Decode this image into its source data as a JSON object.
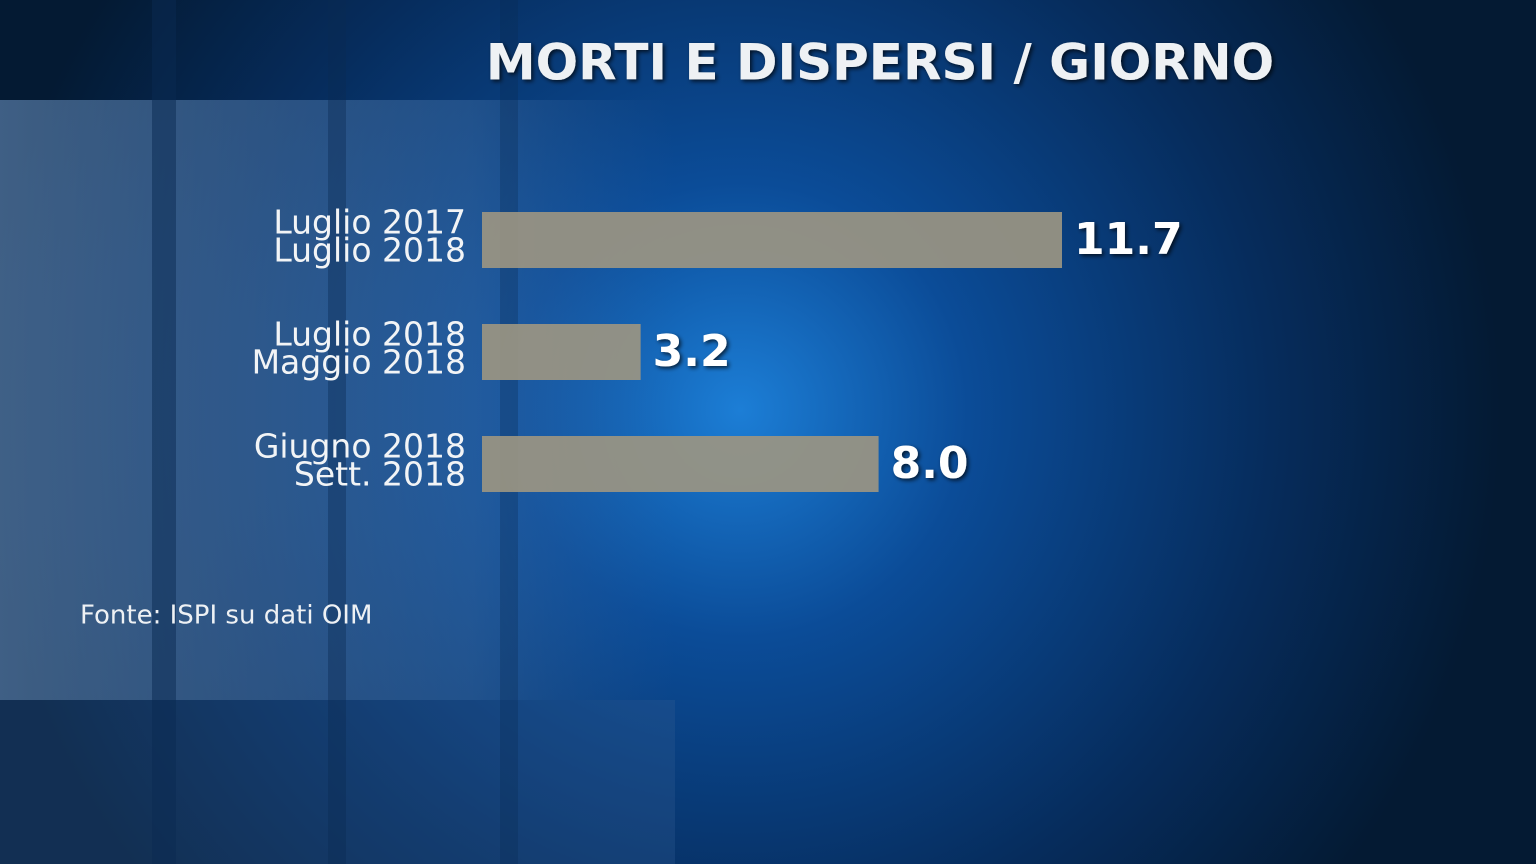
{
  "chart_data": {
    "type": "bar",
    "orientation": "horizontal",
    "title": "MORTI E DISPERSI / GIORNO",
    "categories": [
      [
        "Luglio 2017",
        "Luglio 2018"
      ],
      [
        "Luglio 2018",
        "Maggio 2018"
      ],
      [
        "Giugno 2018",
        "Sett. 2018"
      ]
    ],
    "values": [
      11.7,
      3.2,
      8.0
    ],
    "value_labels": [
      "11.7",
      "3.2",
      "8.0"
    ],
    "color": "#9b9582",
    "source": "Fonte: ISPI su dati OIM"
  }
}
